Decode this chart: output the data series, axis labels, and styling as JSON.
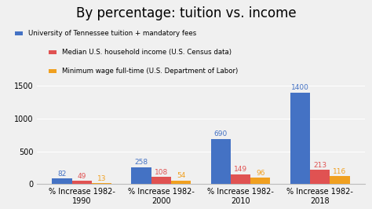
{
  "title": "By percentage: tuition vs. income",
  "categories": [
    "% Increase 1982-\n1990",
    "% Increase 1982-\n2000",
    "% Increase 1982-\n2010",
    "% Increase 1982-\n2018"
  ],
  "series": {
    "tuition": [
      82,
      258,
      690,
      1400
    ],
    "income": [
      49,
      108,
      149,
      213
    ],
    "minwage": [
      13,
      54,
      96,
      116
    ]
  },
  "colors": {
    "tuition": "#4472C4",
    "income": "#E05252",
    "minwage": "#F0A020"
  },
  "legend_labels": [
    "University of Tennessee tuition + mandatory fees",
    "Median U.S. household income (U.S. Census data)",
    "Minimum wage full-time (U.S. Department of Labor)"
  ],
  "ylim": [
    0,
    1600
  ],
  "yticks": [
    0,
    500,
    1000,
    1500
  ],
  "background_color": "#f0f0f0",
  "title_fontsize": 12,
  "label_fontsize": 7.5,
  "tick_fontsize": 7,
  "bar_label_fontsize": 6.5,
  "legend_fontsize": 6.2
}
